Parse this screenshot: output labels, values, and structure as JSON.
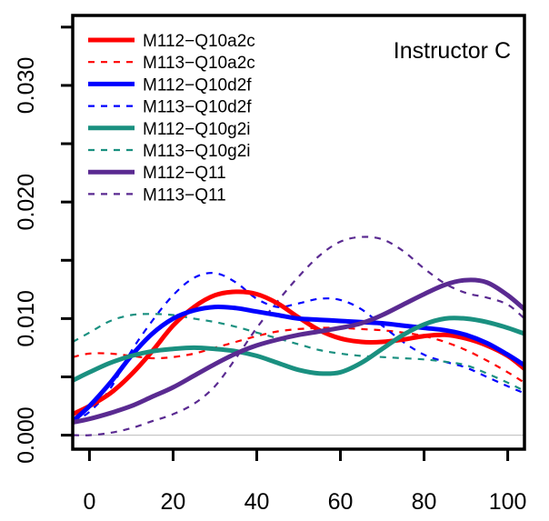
{
  "chart_data": {
    "type": "line",
    "annotation": "Instructor C",
    "xlabel": "",
    "ylabel": "",
    "xlim": [
      -4,
      104
    ],
    "ylim": [
      -0.0012,
      0.036
    ],
    "x_ticks": [
      0,
      20,
      40,
      60,
      80,
      100
    ],
    "x_tick_labels": [
      "0",
      "20",
      "40",
      "60",
      "80",
      "100"
    ],
    "y_ticks": [
      0,
      0.005,
      0.01,
      0.015,
      0.02,
      0.025,
      0.03,
      0.035
    ],
    "y_tick_labels": [
      "0.000",
      "",
      "0.010",
      "",
      "0.020",
      "",
      "0.030",
      ""
    ],
    "grid": false,
    "baseline": 0,
    "legend_position": "top-left",
    "series": [
      {
        "name": "M112−Q10a2c",
        "color": "#ff0000",
        "style": "solid",
        "x": [
          -4,
          0,
          5,
          10,
          15,
          20,
          25,
          30,
          35,
          40,
          45,
          50,
          55,
          60,
          65,
          70,
          75,
          80,
          85,
          90,
          95,
          100,
          104
        ],
        "y": [
          0.0018,
          0.0025,
          0.0036,
          0.0052,
          0.0072,
          0.0094,
          0.011,
          0.012,
          0.0123,
          0.0121,
          0.0113,
          0.0101,
          0.009,
          0.0083,
          0.008,
          0.008,
          0.0082,
          0.0085,
          0.0086,
          0.0083,
          0.0077,
          0.0068,
          0.0057
        ]
      },
      {
        "name": "M113−Q10a2c",
        "color": "#ff0000",
        "style": "dashed",
        "x": [
          -4,
          0,
          5,
          10,
          15,
          20,
          25,
          30,
          35,
          40,
          45,
          50,
          55,
          60,
          65,
          70,
          75,
          80,
          85,
          90,
          95,
          100,
          104
        ],
        "y": [
          0.0067,
          0.007,
          0.007,
          0.0068,
          0.0066,
          0.0067,
          0.007,
          0.0075,
          0.008,
          0.0085,
          0.0089,
          0.0091,
          0.0092,
          0.0092,
          0.0091,
          0.009,
          0.0088,
          0.0085,
          0.008,
          0.0073,
          0.0064,
          0.0054,
          0.0045
        ]
      },
      {
        "name": "M112−Q10d2f",
        "color": "#0000ff",
        "style": "solid",
        "x": [
          -4,
          0,
          5,
          10,
          15,
          20,
          25,
          30,
          35,
          40,
          45,
          50,
          55,
          60,
          65,
          70,
          75,
          80,
          85,
          90,
          95,
          100,
          104
        ],
        "y": [
          0.0012,
          0.0025,
          0.0045,
          0.0068,
          0.0087,
          0.01,
          0.0107,
          0.011,
          0.0109,
          0.0106,
          0.0103,
          0.01,
          0.0099,
          0.0098,
          0.0097,
          0.0096,
          0.0094,
          0.0092,
          0.009,
          0.0086,
          0.0079,
          0.0069,
          0.006
        ]
      },
      {
        "name": "M113−Q10d2f",
        "color": "#0000ff",
        "style": "dashed",
        "x": [
          -4,
          0,
          5,
          10,
          15,
          20,
          25,
          30,
          35,
          40,
          45,
          50,
          55,
          60,
          65,
          70,
          75,
          80,
          85,
          90,
          95,
          100,
          104
        ],
        "y": [
          0.0012,
          0.002,
          0.004,
          0.0072,
          0.0098,
          0.012,
          0.0135,
          0.0139,
          0.0131,
          0.0117,
          0.011,
          0.0113,
          0.0117,
          0.0116,
          0.0108,
          0.0094,
          0.008,
          0.0069,
          0.0063,
          0.0058,
          0.005,
          0.0042,
          0.0036
        ]
      },
      {
        "name": "M112−Q10g2i",
        "color": "#1a9080",
        "style": "solid",
        "x": [
          -4,
          0,
          5,
          10,
          15,
          20,
          25,
          30,
          35,
          40,
          45,
          50,
          55,
          60,
          65,
          70,
          75,
          80,
          85,
          90,
          95,
          100,
          104
        ],
        "y": [
          0.0047,
          0.0054,
          0.0062,
          0.0068,
          0.0072,
          0.0074,
          0.0075,
          0.0074,
          0.0072,
          0.0068,
          0.0062,
          0.0056,
          0.0053,
          0.0054,
          0.0062,
          0.0074,
          0.0086,
          0.0095,
          0.01,
          0.01,
          0.0097,
          0.0092,
          0.0087
        ]
      },
      {
        "name": "M113−Q10g2i",
        "color": "#1a9080",
        "style": "dashed",
        "x": [
          -4,
          0,
          5,
          10,
          15,
          20,
          25,
          30,
          35,
          40,
          45,
          50,
          55,
          60,
          65,
          70,
          75,
          80,
          85,
          90,
          95,
          100,
          104
        ],
        "y": [
          0.008,
          0.0088,
          0.0098,
          0.0103,
          0.0104,
          0.0103,
          0.01,
          0.0097,
          0.0093,
          0.0088,
          0.0083,
          0.0078,
          0.0073,
          0.007,
          0.0068,
          0.0067,
          0.0066,
          0.0065,
          0.0063,
          0.006,
          0.0053,
          0.0045,
          0.0038
        ]
      },
      {
        "name": "M112−Q11",
        "color": "#5a2a91",
        "style": "solid",
        "x": [
          -4,
          0,
          5,
          10,
          15,
          20,
          25,
          30,
          35,
          40,
          45,
          50,
          55,
          60,
          65,
          70,
          75,
          80,
          85,
          90,
          95,
          100,
          104
        ],
        "y": [
          0.0011,
          0.0014,
          0.0019,
          0.0025,
          0.0033,
          0.0041,
          0.0051,
          0.0061,
          0.007,
          0.0077,
          0.0082,
          0.0086,
          0.0089,
          0.0092,
          0.0096,
          0.0103,
          0.0112,
          0.0121,
          0.0129,
          0.0133,
          0.0131,
          0.012,
          0.0108
        ]
      },
      {
        "name": "M113−Q11",
        "color": "#5a2a91",
        "style": "dashed",
        "x": [
          -4,
          0,
          5,
          10,
          15,
          20,
          25,
          30,
          35,
          40,
          45,
          50,
          55,
          60,
          65,
          70,
          75,
          80,
          85,
          90,
          95,
          100,
          104
        ],
        "y": [
          0.0,
          0.0,
          0.0002,
          0.0006,
          0.0012,
          0.0018,
          0.0027,
          0.0042,
          0.0066,
          0.0092,
          0.0115,
          0.0136,
          0.0154,
          0.0166,
          0.017,
          0.0168,
          0.0158,
          0.0143,
          0.013,
          0.0122,
          0.0118,
          0.0112,
          0.01
        ]
      }
    ]
  }
}
